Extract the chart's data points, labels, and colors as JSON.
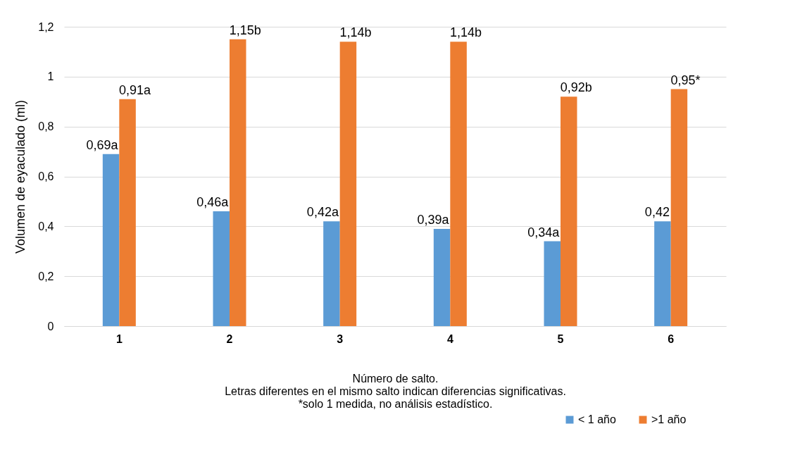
{
  "chart_data": {
    "type": "bar",
    "xlabel": "Número de salto.",
    "ylabel": "Volumen de eyaculado (ml)",
    "annotations": [
      "Letras diferentes en el mismo salto indican diferencias significativas.",
      "*solo 1 medida, no análisis estadístico."
    ],
    "categories": [
      "1",
      "2",
      "3",
      "4",
      "5",
      "6"
    ],
    "series": [
      {
        "name": "< 1 año",
        "color": "#5b9bd5",
        "values": [
          0.69,
          0.46,
          0.42,
          0.39,
          0.34,
          0.42
        ],
        "value_labels": [
          "0,69a",
          "0,46a",
          "0,42a",
          "0,39a",
          "0,34a",
          "0,42"
        ]
      },
      {
        "name": ">1 año",
        "color": "#ed7d31",
        "values": [
          0.91,
          1.15,
          1.14,
          1.14,
          0.92,
          0.95
        ],
        "value_labels": [
          "0,91a",
          "1,15b",
          "1,14b",
          "1,14b",
          "0,92b",
          "0,95*"
        ]
      }
    ],
    "ylim": [
      0,
      1.2
    ],
    "yticks": [
      0,
      {
        "value": 0.2,
        "label": "0,2"
      },
      {
        "value": 0.4,
        "label": "0,4"
      },
      {
        "value": 0.6,
        "label": "0,6"
      },
      {
        "value": 0.8,
        "label": "0,8"
      },
      1,
      {
        "value": 1.2,
        "label": "1,2"
      }
    ],
    "grid": "y",
    "legend": "bottom right"
  }
}
